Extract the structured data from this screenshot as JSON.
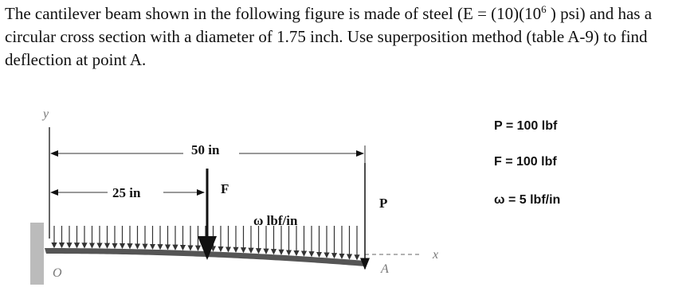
{
  "question": {
    "line1_before": "The cantilever beam shown in the following figure is made of steel (E = (10)(10",
    "line1_sup": "6",
    "line1_after": " ) psi) and has a",
    "line2": "circular cross section with a diameter of 1.75 inch. Use superposition method (table A-9) to find",
    "line3": "deflection at point A."
  },
  "figure": {
    "y_axis": "y",
    "x_axis": "x",
    "origin": "O",
    "point_a": "A",
    "dim_50": "50 in",
    "dim_25": "25 in",
    "force_f": "F",
    "load_w": "ω lbf/in",
    "force_p": "P"
  },
  "givens": [
    "P = 100 lbf",
    "F = 100 lbf",
    "ω = 5 lbf/in"
  ]
}
